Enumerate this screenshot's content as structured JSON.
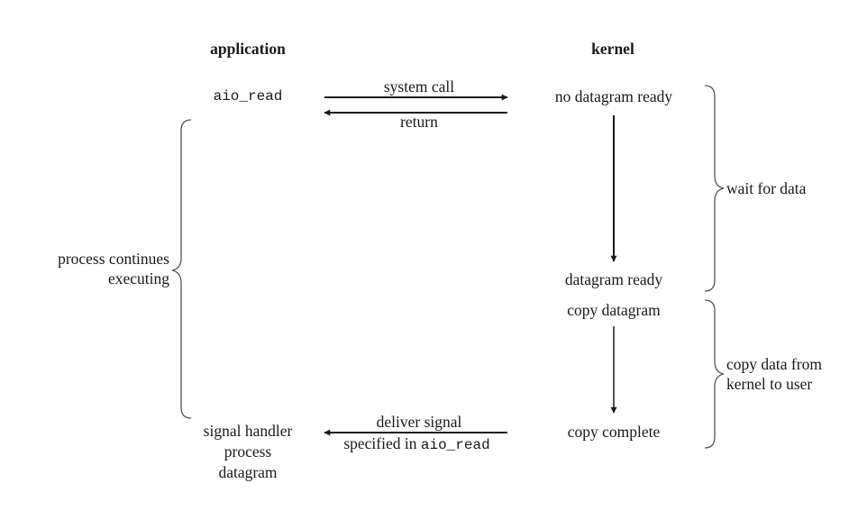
{
  "headers": {
    "application": "application",
    "kernel": "kernel"
  },
  "application": {
    "call": "aio_read",
    "process_continues": [
      "process continues",
      "executing"
    ],
    "signal_handler": [
      "signal handler",
      "process",
      "datagram"
    ]
  },
  "messages": {
    "system_call": "system call",
    "return": "return",
    "deliver_signal": "deliver signal",
    "specified_in_prefix": "specified in ",
    "specified_in_code": "aio_read"
  },
  "kernel": {
    "no_datagram_ready": "no datagram ready",
    "datagram_ready": "datagram ready",
    "copy_datagram": "copy datagram",
    "copy_complete": "copy complete"
  },
  "phases": {
    "wait_for_data": "wait for data",
    "copy_data": [
      "copy data from",
      "kernel to user"
    ]
  }
}
